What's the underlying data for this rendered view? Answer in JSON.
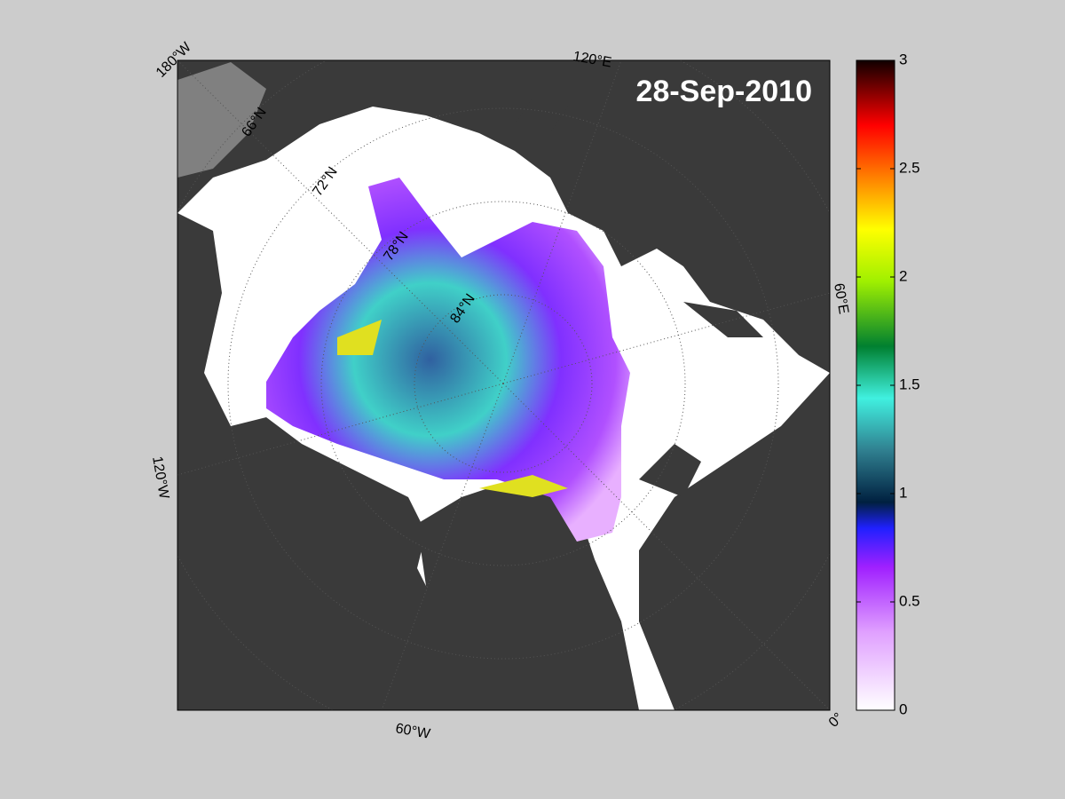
{
  "map": {
    "date": "28-Sep-2010",
    "longitude_labels": [
      "180°W",
      "120°E",
      "60°E",
      "0°",
      "60°W",
      "120°W"
    ],
    "latitude_labels": [
      "66°N",
      "72°N",
      "78°N",
      "84°N"
    ]
  },
  "colorbar": {
    "lim": [
      0,
      3
    ],
    "ticks": [
      0,
      0.5,
      1,
      1.5,
      2,
      2.5,
      3
    ]
  }
}
